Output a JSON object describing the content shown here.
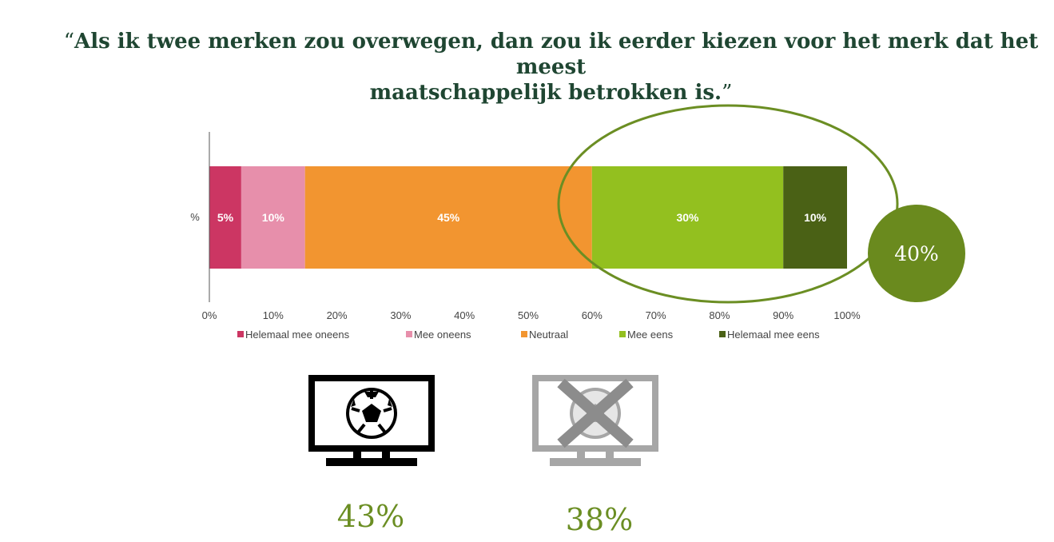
{
  "title": {
    "open_quote": "“",
    "line1": "Als ik twee merken zou overwegen, dan zou ik eerder kiezen voor het merk dat het meest",
    "line2": "maatschappelijk betrokken is.",
    "close_quote": "”"
  },
  "chart_data": {
    "type": "bar",
    "orientation": "horizontal-stacked",
    "categories": [
      "%"
    ],
    "series": [
      {
        "name": "Helemaal mee oneens",
        "values": [
          5
        ],
        "label": "5%",
        "color": "#cc3663"
      },
      {
        "name": "Mee oneens",
        "values": [
          10
        ],
        "label": "10%",
        "color": "#e78fab"
      },
      {
        "name": "Neutraal",
        "values": [
          45
        ],
        "label": "45%",
        "color": "#f29530"
      },
      {
        "name": "Mee eens",
        "values": [
          30
        ],
        "label": "30%",
        "color": "#93c01f"
      },
      {
        "name": "Helemaal mee eens",
        "values": [
          10
        ],
        "label": "10%",
        "color": "#4a6115"
      }
    ],
    "xlim": [
      0,
      100
    ],
    "x_ticks": [
      "0%",
      "10%",
      "20%",
      "30%",
      "40%",
      "50%",
      "60%",
      "70%",
      "80%",
      "90%",
      "100%"
    ],
    "legend_position": "bottom",
    "grid": false,
    "highlight_color": "#6b8e23"
  },
  "highlight_badge": "40%",
  "tv_stats": [
    {
      "icon": "tv-football-icon",
      "value": "43%",
      "color": "#000000"
    },
    {
      "icon": "tv-football-crossed-icon",
      "value": "38%",
      "color": "#a6a6a6"
    }
  ]
}
